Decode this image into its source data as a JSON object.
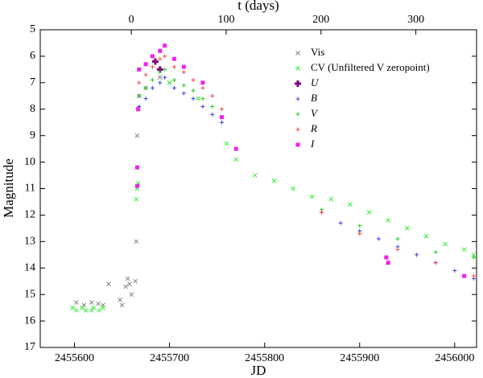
{
  "chart_data": {
    "type": "scatter",
    "xlabel": "JD",
    "ylabel": "Magnitude",
    "x2label": "t (days)",
    "xlim": [
      2455564,
      2456023
    ],
    "xticks": [
      2455600,
      2455700,
      2455800,
      2455900,
      2456000
    ],
    "x2lim": [
      -96,
      364
    ],
    "x2ticks": [
      0,
      100,
      200,
      300
    ],
    "ylim": [
      5,
      17
    ],
    "yticks": [
      5,
      6,
      7,
      8,
      9,
      10,
      11,
      12,
      13,
      14,
      15,
      16,
      17
    ],
    "invert_y": true,
    "legend": "upper right",
    "series": [
      {
        "name": "Vis",
        "color": "#808080",
        "marker": "x",
        "x": [
          2455602,
          2455610,
          2455618,
          2455625,
          2455630,
          2455636,
          2455648,
          2455650,
          2455654,
          2455656,
          2455658,
          2455660,
          2455664,
          2455665,
          2455666,
          2455667,
          2455668,
          2455675,
          2455690,
          2455700
        ],
        "y": [
          15.3,
          15.4,
          15.3,
          15.35,
          15.4,
          14.6,
          15.2,
          15.4,
          14.7,
          14.4,
          14.6,
          15.0,
          14.5,
          13.0,
          9.0,
          8.0,
          7.5,
          7.2,
          6.8,
          7.0
        ]
      },
      {
        "name": "CV (Unfiltered V zeropoint)",
        "color": "#33ee33",
        "marker": "x",
        "x": [
          2455598,
          2455602,
          2455608,
          2455612,
          2455618,
          2455620,
          2455626,
          2455630,
          2455665,
          2455666,
          2455667,
          2455700,
          2455730,
          2455760,
          2455770,
          2455790,
          2455810,
          2455830,
          2455850,
          2455870,
          2455890,
          2455910,
          2455930,
          2455950,
          2455970,
          2455990,
          2456010,
          2456020
        ],
        "y": [
          15.5,
          15.6,
          15.5,
          15.6,
          15.6,
          15.5,
          15.6,
          15.5,
          11.4,
          11.0,
          10.8,
          7.0,
          7.6,
          9.3,
          9.9,
          10.5,
          10.7,
          11.0,
          11.3,
          11.4,
          11.6,
          11.9,
          12.2,
          12.5,
          12.8,
          13.1,
          13.3,
          13.5
        ]
      },
      {
        "name": "U",
        "color": "#800080",
        "marker": "bigplus",
        "x": [
          2455685,
          2455690
        ],
        "y": [
          6.2,
          6.5
        ]
      },
      {
        "name": "B",
        "color": "#3344dd",
        "marker": "plus",
        "x": [
          2455668,
          2455675,
          2455682,
          2455690,
          2455695,
          2455705,
          2455715,
          2455725,
          2455735,
          2455745,
          2455755,
          2455860,
          2455880,
          2455900,
          2455920,
          2455940,
          2455960,
          2455980,
          2456000,
          2456020
        ],
        "y": [
          7.9,
          7.6,
          7.2,
          7.0,
          6.8,
          7.2,
          7.4,
          7.6,
          7.9,
          8.2,
          8.5,
          11.9,
          12.3,
          12.6,
          12.9,
          13.2,
          13.5,
          13.8,
          14.1,
          14.4
        ]
      },
      {
        "name": "V",
        "color": "#22cc22",
        "marker": "plus",
        "x": [
          2455668,
          2455675,
          2455682,
          2455690,
          2455695,
          2455705,
          2455715,
          2455725,
          2455735,
          2455745,
          2455755,
          2455860,
          2455900,
          2455940,
          2455980,
          2456020
        ],
        "y": [
          7.5,
          7.2,
          6.9,
          6.6,
          6.5,
          6.9,
          7.1,
          7.3,
          7.6,
          7.9,
          8.3,
          11.8,
          12.4,
          12.9,
          13.4,
          13.6
        ]
      },
      {
        "name": "R",
        "color": "#ee4444",
        "marker": "plus",
        "x": [
          2455668,
          2455675,
          2455682,
          2455690,
          2455695,
          2455705,
          2455715,
          2455725,
          2455735,
          2455745,
          2455755,
          2455860,
          2455900,
          2455940,
          2455980,
          2456020
        ],
        "y": [
          7.0,
          6.7,
          6.4,
          6.1,
          6.0,
          6.4,
          6.6,
          6.9,
          7.2,
          7.5,
          8.0,
          11.9,
          12.7,
          13.3,
          13.8,
          14.3
        ]
      },
      {
        "name": "I",
        "color": "#ee22ee",
        "marker": "square",
        "x": [
          2455666,
          2455666,
          2455667,
          2455668,
          2455675,
          2455682,
          2455690,
          2455695,
          2455705,
          2455715,
          2455735,
          2455755,
          2455770,
          2455928,
          2455930,
          2456010
        ],
        "y": [
          10.9,
          10.2,
          8.0,
          6.5,
          6.3,
          6.0,
          5.8,
          5.6,
          6.1,
          6.4,
          7.0,
          8.3,
          9.5,
          13.6,
          13.8,
          14.3
        ]
      }
    ]
  }
}
